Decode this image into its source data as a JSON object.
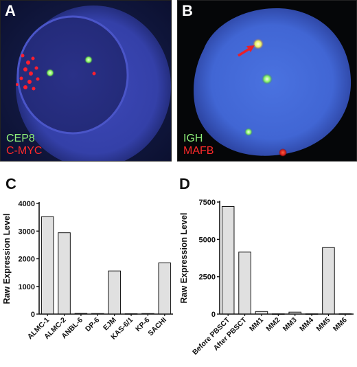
{
  "panels": {
    "a": {
      "label": "A",
      "legend": [
        {
          "text": "CEP8",
          "color": "#8ef07a"
        },
        {
          "text": "C-MYC",
          "color": "#ff2a2a"
        }
      ]
    },
    "b": {
      "label": "B",
      "legend": [
        {
          "text": "IGH",
          "color": "#8ef07a"
        },
        {
          "text": "MAFB",
          "color": "#ff2a2a"
        }
      ]
    },
    "c": {
      "label": "C"
    },
    "d": {
      "label": "D"
    }
  },
  "chart_data": [
    {
      "type": "bar",
      "panel": "C",
      "ylabel": "Raw Expression Level",
      "xlabel": "",
      "categories": [
        "ALMC-1",
        "ALMC-2",
        "ANBL-6",
        "DP-6",
        "EJM",
        "KAS-6/1",
        "KP-6",
        "SACHI"
      ],
      "values": [
        3520,
        2940,
        25,
        20,
        1560,
        15,
        20,
        1850
      ],
      "ylim": [
        0,
        4000
      ],
      "yticks": [
        0,
        1000,
        2000,
        3000,
        4000
      ],
      "bar_color": "#e0e0e0"
    },
    {
      "type": "bar",
      "panel": "D",
      "ylabel": "Raw Expression Level",
      "xlabel": "",
      "categories": [
        "Before PBSCT",
        "After PBSCT",
        "MM1",
        "MM2",
        "MM3",
        "MM4",
        "MM5",
        "MM6"
      ],
      "values": [
        7200,
        4150,
        170,
        20,
        130,
        20,
        4450,
        25
      ],
      "ylim": [
        0,
        7500
      ],
      "yticks": [
        0,
        2500,
        5000,
        7500
      ],
      "bar_color": "#e0e0e0"
    }
  ]
}
